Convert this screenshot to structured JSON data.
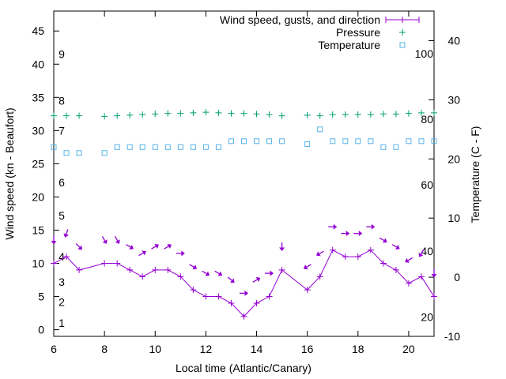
{
  "chart_data": {
    "type": "line",
    "xlabel": "Local time (Atlantic/Canary)",
    "ylabel": "Wind speed (kn - Beaufort)",
    "y2label": "Temperature (C - F)",
    "xlim": [
      6,
      21
    ],
    "ylim": [
      -1,
      48
    ],
    "y2lim": [
      -10,
      45
    ],
    "pressure_range": [
      -10,
      45
    ],
    "x_ticks": [
      6,
      8,
      10,
      12,
      14,
      16,
      18,
      20
    ],
    "y_ticks": [
      0,
      5,
      10,
      15,
      20,
      25,
      30,
      35,
      40,
      45
    ],
    "y2_ticks": [
      -10,
      0,
      10,
      20,
      30,
      40
    ],
    "beaufort_labels": [
      {
        "text": "1",
        "y": 1.0
      },
      {
        "text": "2",
        "y": 4.2
      },
      {
        "text": "3",
        "y": 7.2
      },
      {
        "text": "4",
        "y": 11.0
      },
      {
        "text": "5",
        "y": 17.2
      },
      {
        "text": "6",
        "y": 22.2
      },
      {
        "text": "7",
        "y": 30.0
      },
      {
        "text": "8",
        "y": 34.5
      },
      {
        "text": "9",
        "y": 41.5
      }
    ],
    "fahrenheit_labels": [
      {
        "text": "20",
        "y": -6.7
      },
      {
        "text": "40",
        "y": 4.4
      },
      {
        "text": "60",
        "y": 15.6
      },
      {
        "text": "80",
        "y": 26.7
      },
      {
        "text": "100",
        "y": 37.8
      }
    ],
    "legend": {
      "placement": "top-right",
      "entries": [
        "Wind speed, gusts, and direction",
        "Pressure",
        "Temperature"
      ]
    },
    "series": [
      {
        "name": "Wind speed, gusts, and direction",
        "color": "#9400d3",
        "x": [
          6,
          6.5,
          7,
          8,
          8.5,
          9,
          9.5,
          10,
          10.5,
          11,
          11.5,
          12,
          12.5,
          13,
          13.5,
          14,
          14.5,
          15,
          16,
          16.5,
          17,
          17.5,
          18,
          18.5,
          19,
          19.5,
          20,
          20.5,
          21
        ],
        "values": [
          10,
          11,
          9,
          10,
          10,
          9,
          8,
          9,
          9,
          8,
          6,
          5,
          5,
          4,
          2,
          4,
          5,
          9,
          6,
          8,
          12,
          11,
          11,
          12,
          10,
          9,
          7,
          8,
          5
        ],
        "gust_values": [
          13.5,
          14.5,
          12.5,
          13.5,
          13.5,
          12.5,
          11.5,
          12.5,
          12.5,
          11.5,
          9.5,
          8.5,
          8.5,
          7.5,
          5.5,
          7.5,
          8.5,
          12.5,
          9.5,
          11.5,
          15.5,
          14.5,
          14.5,
          15.5,
          13.5,
          12.5,
          10.5,
          11.5,
          8.5
        ],
        "direction_deg": [
          0,
          20,
          315,
          330,
          330,
          300,
          240,
          240,
          240,
          270,
          300,
          300,
          300,
          310,
          270,
          240,
          270,
          0,
          60,
          60,
          270,
          270,
          270,
          270,
          300,
          300,
          60,
          30,
          0
        ]
      },
      {
        "name": "Pressure",
        "color": "#009e73",
        "x": [
          6,
          6.5,
          7,
          8,
          8.5,
          9,
          9.5,
          10,
          10.5,
          11,
          11.5,
          12,
          12.5,
          13,
          13.5,
          14,
          14.5,
          15,
          16,
          16.5,
          17,
          17.5,
          18,
          18.5,
          19,
          19.5,
          20,
          20.5,
          21
        ],
        "values": [
          27.3,
          27.3,
          27.3,
          27.2,
          27.3,
          27.4,
          27.5,
          27.6,
          27.7,
          27.7,
          27.8,
          27.9,
          27.8,
          27.7,
          27.7,
          27.6,
          27.5,
          27.3,
          27.4,
          27.3,
          27.5,
          27.5,
          27.5,
          27.5,
          27.6,
          27.6,
          27.7,
          27.8,
          27.8
        ]
      },
      {
        "name": "Temperature",
        "color": "#56b4e9",
        "x": [
          6,
          6.5,
          7,
          8,
          8.5,
          9,
          9.5,
          10,
          10.5,
          11,
          11.5,
          12,
          12.5,
          13,
          13.5,
          14,
          14.5,
          15,
          16,
          16.5,
          17,
          17.5,
          18,
          18.5,
          19,
          19.5,
          20,
          20.5,
          21
        ],
        "values": [
          22,
          21,
          21,
          21,
          22,
          22,
          22,
          22,
          22,
          22,
          22,
          22,
          22,
          23,
          23,
          23,
          23,
          23,
          22.5,
          25,
          23,
          23,
          23,
          23,
          22,
          22,
          23,
          23,
          23
        ]
      }
    ]
  }
}
